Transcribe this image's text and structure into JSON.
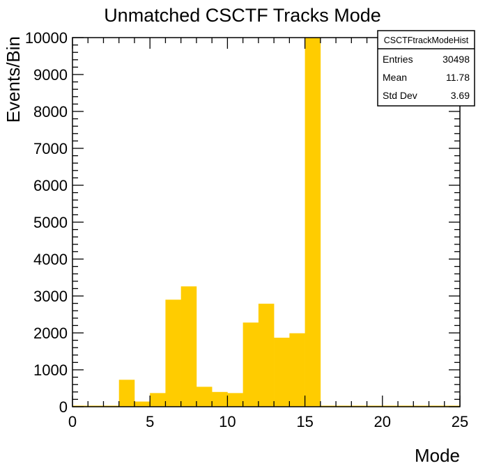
{
  "chart_data": {
    "type": "histogram",
    "title": "Unmatched CSCTF Tracks Mode",
    "xlabel": "Mode",
    "ylabel": "Events/Bin",
    "xlim": [
      0,
      25
    ],
    "ylim": [
      0,
      10000
    ],
    "bin_width": 1,
    "x_ticks": [
      0,
      5,
      10,
      15,
      20,
      25
    ],
    "y_ticks": [
      0,
      1000,
      2000,
      3000,
      4000,
      5000,
      6000,
      7000,
      8000,
      9000,
      10000
    ],
    "bin_edges_start": [
      0,
      1,
      2,
      3,
      4,
      5,
      6,
      7,
      8,
      9,
      10,
      11,
      12,
      13,
      14,
      15,
      16,
      17,
      18,
      19,
      20,
      21,
      22,
      23,
      24
    ],
    "values": [
      0,
      0,
      0,
      730,
      140,
      370,
      2900,
      3260,
      540,
      400,
      370,
      2280,
      2790,
      1870,
      1990,
      9990,
      0,
      0,
      0,
      0,
      0,
      0,
      0,
      0,
      0
    ],
    "fill_color": "#ffcc00",
    "stats_box": {
      "name": "CSCTFtrackModeHist",
      "rows": [
        {
          "label": "Entries",
          "value": "30498"
        },
        {
          "label": "Mean",
          "value": "11.78"
        },
        {
          "label": "Std Dev",
          "value": "3.69"
        }
      ]
    }
  }
}
